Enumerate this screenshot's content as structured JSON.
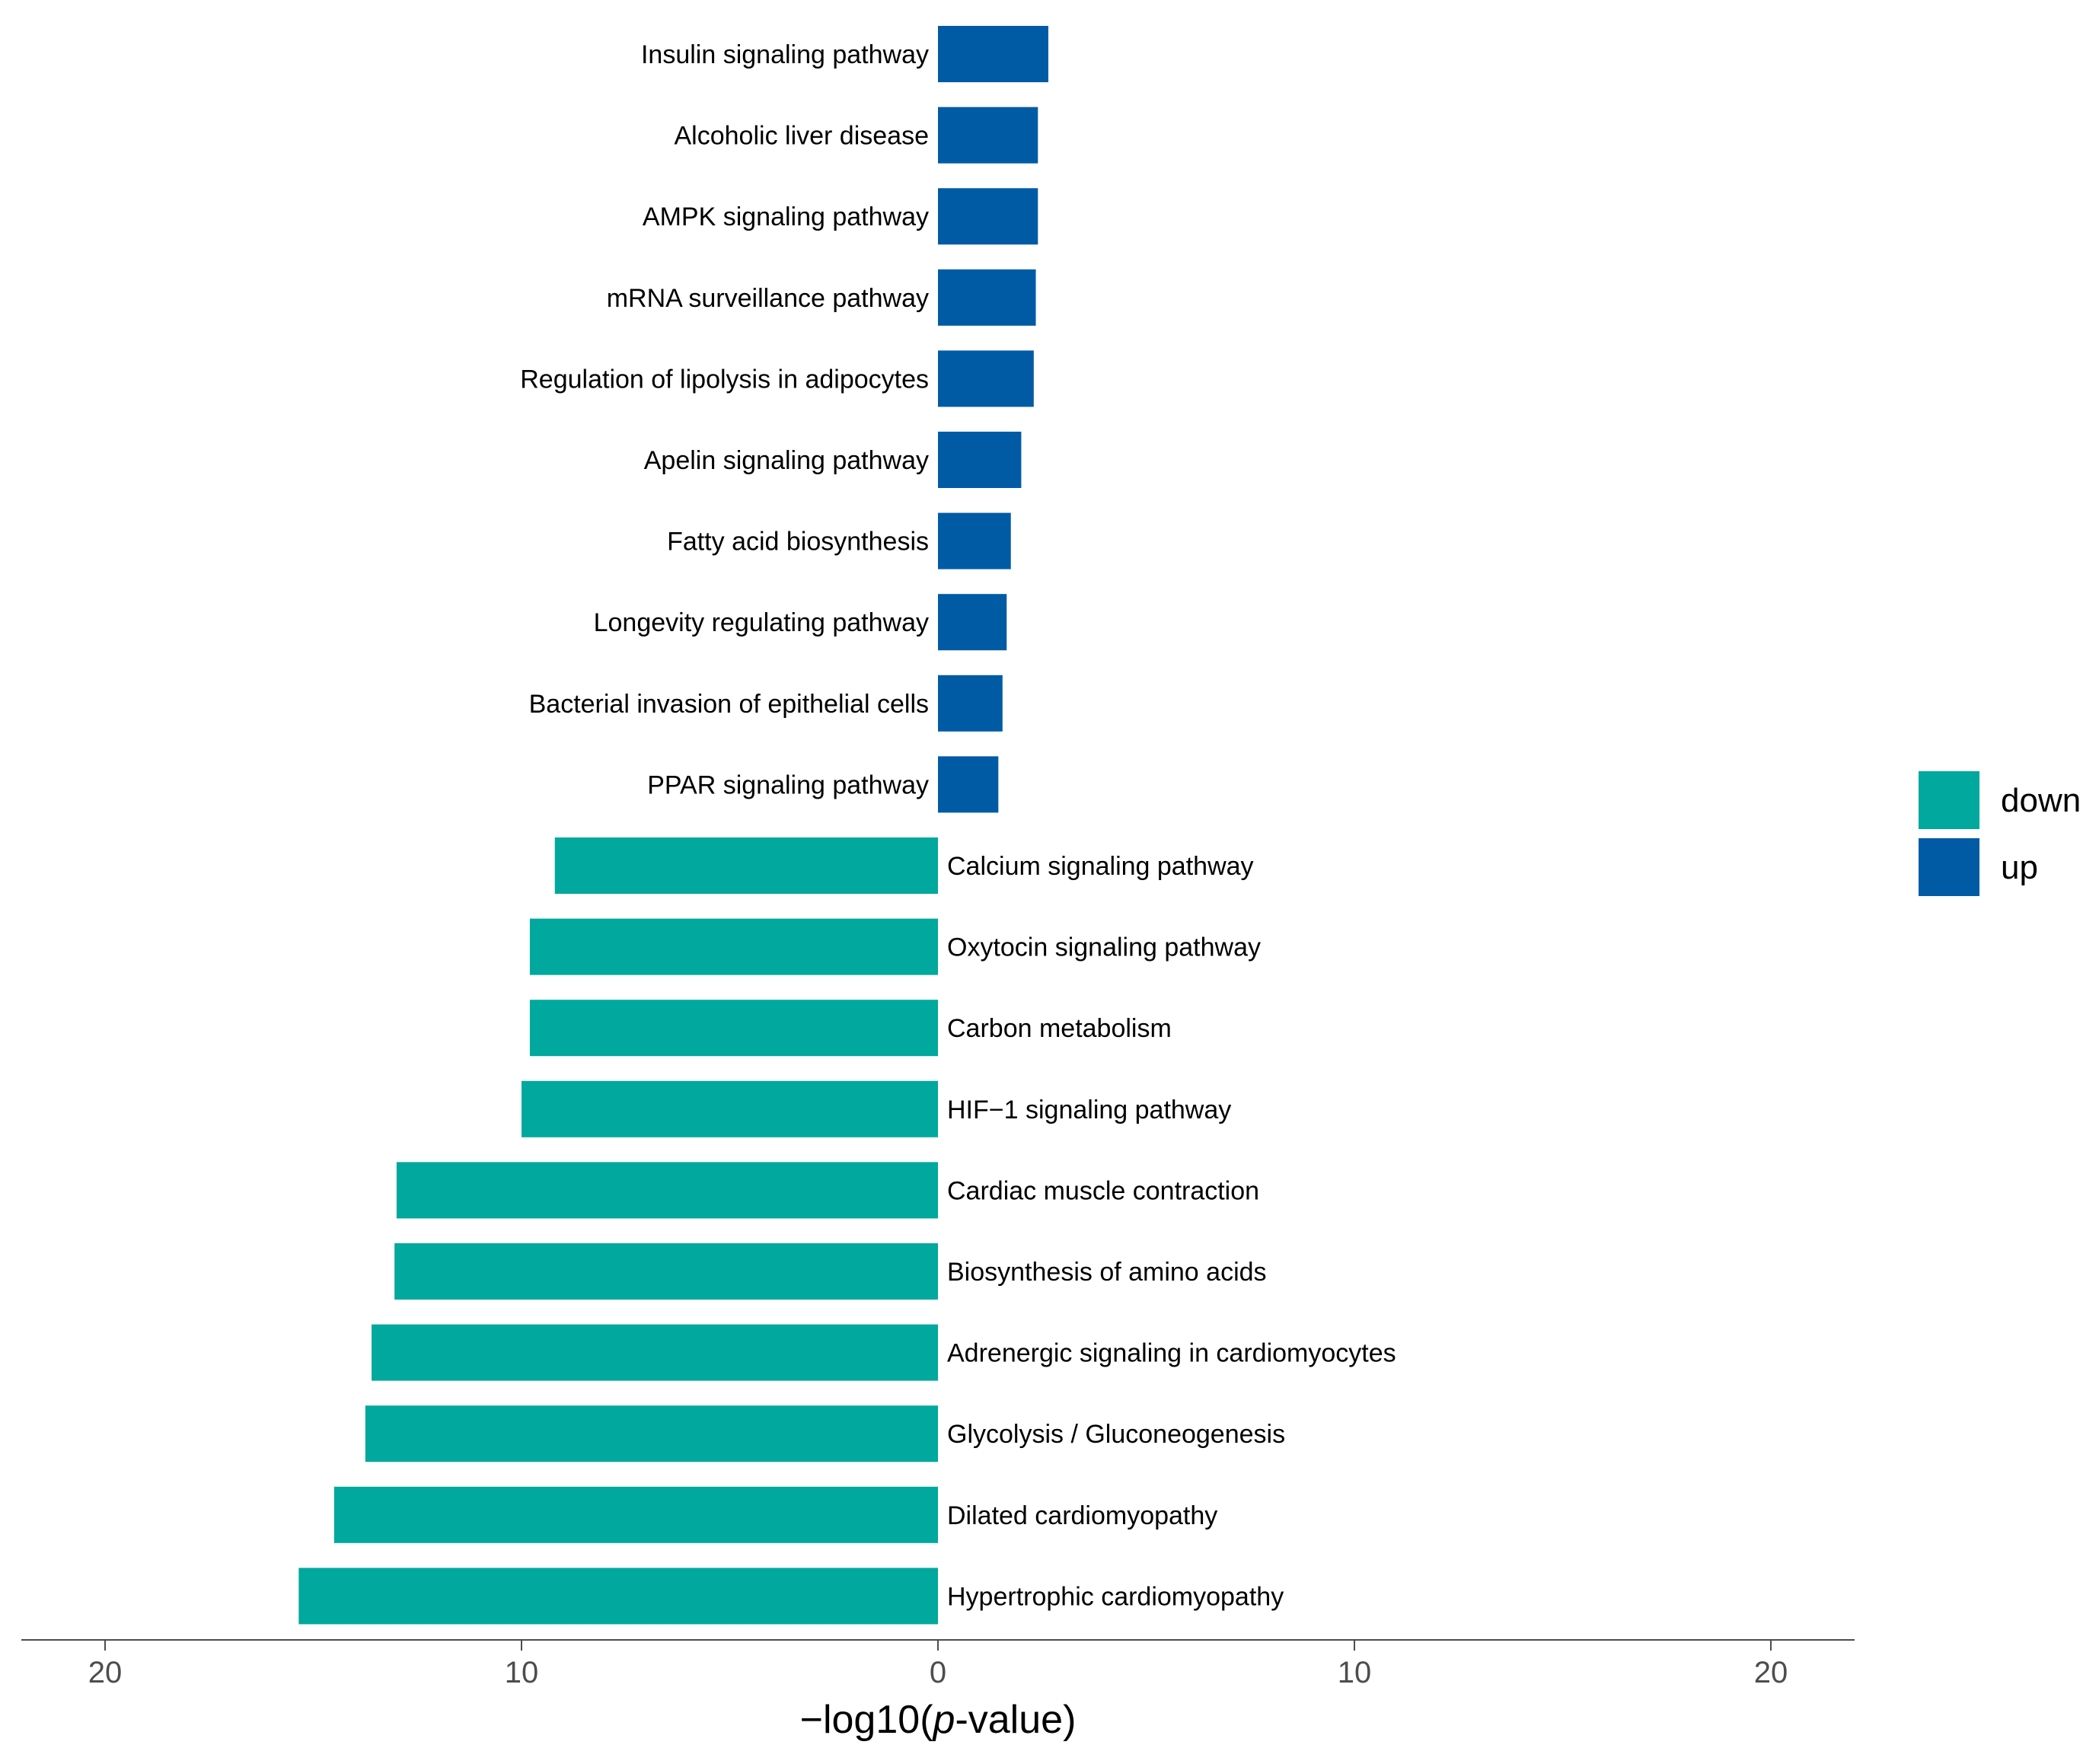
{
  "chart_data": {
    "type": "bar",
    "orientation": "horizontal-diverging",
    "title": "",
    "xlabel_prefix": "−log10(",
    "xlabel_italic": "p",
    "xlabel_suffix": "-value)",
    "ylabel": "",
    "xlim": [
      -22,
      22
    ],
    "xticks": [
      -20,
      -10,
      0,
      10,
      20
    ],
    "xtick_labels": [
      "20",
      "10",
      "0",
      "10",
      "20"
    ],
    "grid": false,
    "legend": {
      "position": "right",
      "entries": [
        {
          "name": "down",
          "color": "#00A89D"
        },
        {
          "name": "up",
          "color": "#005BA5"
        }
      ]
    },
    "series": [
      {
        "name": "up",
        "color": "#005BA5",
        "categories": [
          "Insulin signaling pathway",
          "Alcoholic liver disease",
          "AMPK signaling pathway",
          "mRNA surveillance pathway",
          "Regulation of lipolysis in adipocytes",
          "Apelin signaling pathway",
          "Fatty acid biosynthesis",
          "Longevity regulating pathway",
          "Bacterial invasion of epithelial cells",
          "PPAR signaling pathway"
        ],
        "values": [
          2.65,
          2.4,
          2.4,
          2.35,
          2.3,
          2.0,
          1.75,
          1.65,
          1.55,
          1.45
        ]
      },
      {
        "name": "down",
        "color": "#00A89D",
        "categories": [
          "Calcium signaling pathway",
          "Oxytocin signaling pathway",
          "Carbon metabolism",
          "HIF−1 signaling pathway",
          "Cardiac muscle contraction",
          "Biosynthesis of amino acids",
          "Adrenergic signaling in cardiomyocytes",
          "Glycolysis / Gluconeogenesis",
          "Dilated cardiomyopathy",
          "Hypertrophic cardiomyopathy"
        ],
        "values": [
          -9.2,
          -9.8,
          -9.8,
          -10.0,
          -13.0,
          -13.05,
          -13.6,
          -13.75,
          -14.5,
          -15.35
        ]
      }
    ]
  }
}
